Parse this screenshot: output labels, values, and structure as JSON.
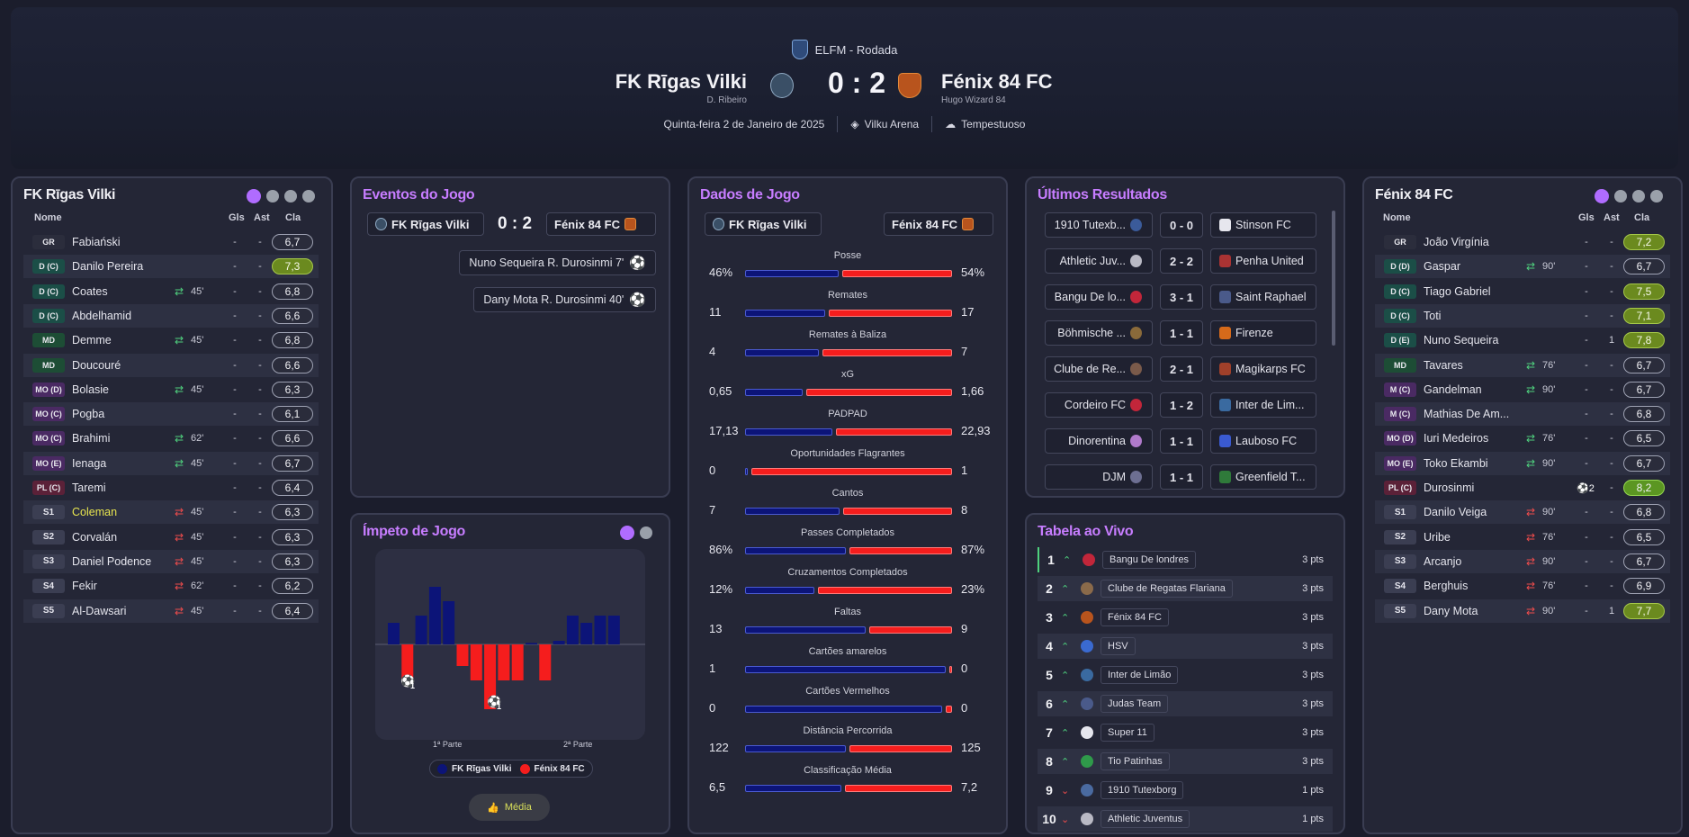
{
  "header": {
    "competition": "ELFM - Rodada",
    "home_team": "FK Rīgas Vilki",
    "home_manager": "D. Ribeiro",
    "away_team": "Fénix 84 FC",
    "away_manager": "Hugo Wizard 84",
    "score": "0 : 2",
    "date": "Quinta-feira 2 de Janeiro de 2025",
    "stadium": "Vilku Arena",
    "weather": "Tempestuoso"
  },
  "home_squad": {
    "title": "FK Rīgas Vilki",
    "col_name": "Nome",
    "col_gls": "Gls",
    "col_ast": "Ast",
    "col_cla": "Cla",
    "players": [
      {
        "pos": "GR",
        "name": "Fabiański",
        "gls": "-",
        "ast": "-",
        "rating": "6,7",
        "sub": "",
        "min": ""
      },
      {
        "pos": "D (C)",
        "name": "Danilo Pereira",
        "gls": "-",
        "ast": "-",
        "rating": "7,3",
        "sub": "",
        "min": ""
      },
      {
        "pos": "D (C)",
        "name": "Coates",
        "gls": "-",
        "ast": "-",
        "rating": "6,8",
        "sub": "in",
        "min": "45'"
      },
      {
        "pos": "D (C)",
        "name": "Abdelhamid",
        "gls": "-",
        "ast": "-",
        "rating": "6,6",
        "sub": "",
        "min": ""
      },
      {
        "pos": "MD",
        "name": "Demme",
        "gls": "-",
        "ast": "-",
        "rating": "6,8",
        "sub": "in",
        "min": "45'"
      },
      {
        "pos": "MD",
        "name": "Doucouré",
        "gls": "-",
        "ast": "-",
        "rating": "6,6",
        "sub": "",
        "min": ""
      },
      {
        "pos": "MO (D)",
        "name": "Bolasie",
        "gls": "-",
        "ast": "-",
        "rating": "6,3",
        "sub": "in",
        "min": "45'"
      },
      {
        "pos": "MO (C)",
        "name": "Pogba",
        "gls": "-",
        "ast": "-",
        "rating": "6,1",
        "sub": "",
        "min": ""
      },
      {
        "pos": "MO (C)",
        "name": "Brahimi",
        "gls": "-",
        "ast": "-",
        "rating": "6,6",
        "sub": "in",
        "min": "62'"
      },
      {
        "pos": "MO (E)",
        "name": "Ienaga",
        "gls": "-",
        "ast": "-",
        "rating": "6,7",
        "sub": "in",
        "min": "45'"
      },
      {
        "pos": "PL (C)",
        "name": "Taremi",
        "gls": "-",
        "ast": "-",
        "rating": "6,4",
        "sub": "",
        "min": ""
      },
      {
        "pos": "S1",
        "name": "Coleman",
        "gls": "-",
        "ast": "-",
        "rating": "6,3",
        "sub": "out",
        "min": "45'"
      },
      {
        "pos": "S2",
        "name": "Corvalán",
        "gls": "-",
        "ast": "-",
        "rating": "6,3",
        "sub": "out",
        "min": "45'"
      },
      {
        "pos": "S3",
        "name": "Daniel Podence",
        "gls": "-",
        "ast": "-",
        "rating": "6,3",
        "sub": "out",
        "min": "45'"
      },
      {
        "pos": "S4",
        "name": "Fekir",
        "gls": "-",
        "ast": "-",
        "rating": "6,2",
        "sub": "out",
        "min": "62'"
      },
      {
        "pos": "S5",
        "name": "Al-Dawsari",
        "gls": "-",
        "ast": "-",
        "rating": "6,4",
        "sub": "out",
        "min": "45'"
      }
    ]
  },
  "away_squad": {
    "title": "Fénix 84 FC",
    "col_name": "Nome",
    "col_gls": "Gls",
    "col_ast": "Ast",
    "col_cla": "Cla",
    "players": [
      {
        "pos": "GR",
        "name": "João Virgínia",
        "gls": "-",
        "ast": "-",
        "rating": "7,2",
        "sub": "",
        "min": ""
      },
      {
        "pos": "D (D)",
        "name": "Gaspar",
        "gls": "-",
        "ast": "-",
        "rating": "6,7",
        "sub": "in",
        "min": "90'"
      },
      {
        "pos": "D (C)",
        "name": "Tiago Gabriel",
        "gls": "-",
        "ast": "-",
        "rating": "7,5",
        "sub": "",
        "min": ""
      },
      {
        "pos": "D (C)",
        "name": "Toti",
        "gls": "-",
        "ast": "-",
        "rating": "7,1",
        "sub": "",
        "min": ""
      },
      {
        "pos": "D (E)",
        "name": "Nuno Sequeira",
        "gls": "-",
        "ast": "1",
        "rating": "7,8",
        "sub": "",
        "min": ""
      },
      {
        "pos": "MD",
        "name": "Tavares",
        "gls": "-",
        "ast": "-",
        "rating": "6,7",
        "sub": "in",
        "min": "76'"
      },
      {
        "pos": "M (C)",
        "name": "Gandelman",
        "gls": "-",
        "ast": "-",
        "rating": "6,7",
        "sub": "in",
        "min": "90'"
      },
      {
        "pos": "M (C)",
        "name": "Mathias De Am...",
        "gls": "-",
        "ast": "-",
        "rating": "6,8",
        "sub": "",
        "min": ""
      },
      {
        "pos": "MO (D)",
        "name": "Iuri Medeiros",
        "gls": "-",
        "ast": "-",
        "rating": "6,5",
        "sub": "in",
        "min": "76'"
      },
      {
        "pos": "MO (E)",
        "name": "Toko Ekambi",
        "gls": "-",
        "ast": "-",
        "rating": "6,7",
        "sub": "in",
        "min": "90'"
      },
      {
        "pos": "PL (C)",
        "name": "Durosinmi",
        "gls": "2",
        "ast": "-",
        "rating": "8,2",
        "sub": "",
        "min": ""
      },
      {
        "pos": "S1",
        "name": "Danilo Veiga",
        "gls": "-",
        "ast": "-",
        "rating": "6,8",
        "sub": "out",
        "min": "90'"
      },
      {
        "pos": "S2",
        "name": "Uribe",
        "gls": "-",
        "ast": "-",
        "rating": "6,5",
        "sub": "out",
        "min": "76'"
      },
      {
        "pos": "S3",
        "name": "Arcanjo",
        "gls": "-",
        "ast": "-",
        "rating": "6,7",
        "sub": "out",
        "min": "90'"
      },
      {
        "pos": "S4",
        "name": "Berghuis",
        "gls": "-",
        "ast": "-",
        "rating": "6,9",
        "sub": "out",
        "min": "76'"
      },
      {
        "pos": "S5",
        "name": "Dany Mota",
        "gls": "-",
        "ast": "1",
        "rating": "7,7",
        "sub": "out",
        "min": "90'"
      }
    ]
  },
  "events": {
    "title": "Eventos do Jogo",
    "home": "FK Rīgas Vilki",
    "away": "Fénix 84 FC",
    "score": "0 : 2",
    "items": [
      {
        "text": "Nuno Sequeira  R. Durosinmi  7'"
      },
      {
        "text": "Dany Mota  R. Durosinmi  40'"
      }
    ]
  },
  "momentum": {
    "title": "Ímpeto de Jogo",
    "label_first": "1ª Parte",
    "label_second": "2ª Parte",
    "legend_home": "FK Rīgas Vilki",
    "legend_away": "Fénix 84 FC",
    "button": "Média",
    "goal_count": "1",
    "bars": [
      3,
      -5,
      4,
      8,
      6,
      -3,
      -5,
      -9,
      -5,
      -5,
      0.2,
      -5,
      0.5,
      4,
      3,
      4,
      4
    ],
    "colors": {
      "home": "#0c1478",
      "away": "#f51d1d"
    }
  },
  "stats": {
    "title": "Dados de Jogo",
    "home": "FK Rīgas Vilki",
    "away": "Fénix 84 FC",
    "rows": [
      {
        "label": "Posse",
        "home": "46%",
        "away": "54%",
        "h": 46,
        "a": 54
      },
      {
        "label": "Remates",
        "home": "11",
        "away": "17",
        "h": 11,
        "a": 17
      },
      {
        "label": "Remates à Baliza",
        "home": "4",
        "away": "7",
        "h": 4,
        "a": 7
      },
      {
        "label": "xG",
        "home": "0,65",
        "away": "1,66",
        "h": 0.65,
        "a": 1.66
      },
      {
        "label": "PADPAD",
        "home": "17,13",
        "away": "22,93",
        "h": 17.13,
        "a": 22.93
      },
      {
        "label": "Oportunidades Flagrantes",
        "home": "0",
        "away": "1",
        "h": 0,
        "a": 1
      },
      {
        "label": "Cantos",
        "home": "7",
        "away": "8",
        "h": 7,
        "a": 8
      },
      {
        "label": "Passes Completados",
        "home": "86%",
        "away": "87%",
        "h": 86,
        "a": 87
      },
      {
        "label": "Cruzamentos Completados",
        "home": "12%",
        "away": "23%",
        "h": 12,
        "a": 23
      },
      {
        "label": "Faltas",
        "home": "13",
        "away": "9",
        "h": 13,
        "a": 9
      },
      {
        "label": "Cartões amarelos",
        "home": "1",
        "away": "0",
        "h": 1,
        "a": 0
      },
      {
        "label": "Cartões Vermelhos",
        "home": "0",
        "away": "0",
        "h": 0,
        "a": 0
      },
      {
        "label": "Distância Percorrida",
        "home": "122",
        "away": "125",
        "h": 122,
        "a": 125
      },
      {
        "label": "Classificação Média",
        "home": "6,5",
        "away": "7,2",
        "h": 6.5,
        "a": 7.2
      }
    ]
  },
  "results": {
    "title": "Últimos Resultados",
    "items": [
      {
        "home": "1910 Tutexb...",
        "score": "0 - 0",
        "away": "Stinson FC"
      },
      {
        "home": "Athletic Juv...",
        "score": "2 - 2",
        "away": "Penha United"
      },
      {
        "home": "Bangu De lo...",
        "score": "3 - 1",
        "away": "Saint Raphael"
      },
      {
        "home": "Böhmische ...",
        "score": "1 - 1",
        "away": "Firenze"
      },
      {
        "home": "Clube de Re...",
        "score": "2 - 1",
        "away": "Magikarps FC"
      },
      {
        "home": "Cordeiro FC",
        "score": "1 - 2",
        "away": "Inter de Lim..."
      },
      {
        "home": "Dinorentina",
        "score": "1 - 1",
        "away": "Lauboso FC"
      },
      {
        "home": "DJM",
        "score": "1 - 1",
        "away": "Greenfield T..."
      }
    ]
  },
  "table": {
    "title": "Tabela ao Vivo",
    "rows": [
      {
        "pos": "1",
        "team": "Bangu De londres",
        "pts": "3 pts",
        "dir": "up"
      },
      {
        "pos": "2",
        "team": "Clube de Regatas Flariana",
        "pts": "3 pts",
        "dir": "up"
      },
      {
        "pos": "3",
        "team": "Fénix 84 FC",
        "pts": "3 pts",
        "dir": "up"
      },
      {
        "pos": "4",
        "team": "HSV",
        "pts": "3 pts",
        "dir": "up"
      },
      {
        "pos": "5",
        "team": "Inter de Limão",
        "pts": "3 pts",
        "dir": "up"
      },
      {
        "pos": "6",
        "team": "Judas Team",
        "pts": "3 pts",
        "dir": "up"
      },
      {
        "pos": "7",
        "team": "Super 11",
        "pts": "3 pts",
        "dir": "up"
      },
      {
        "pos": "8",
        "team": "Tio Patinhas",
        "pts": "3 pts",
        "dir": "up"
      },
      {
        "pos": "9",
        "team": "1910 Tutexborg",
        "pts": "1 pts",
        "dir": "down"
      },
      {
        "pos": "10",
        "team": "Athletic Juventus",
        "pts": "1 pts",
        "dir": "down"
      }
    ]
  },
  "icons": {
    "competition": "shield-icon",
    "stadium": "stadium-icon",
    "weather": "storm-icon",
    "goal": "ball-icon",
    "sub_in": "swap-icon",
    "sub_out": "swap-icon",
    "button": "thumbs-up-icon"
  }
}
